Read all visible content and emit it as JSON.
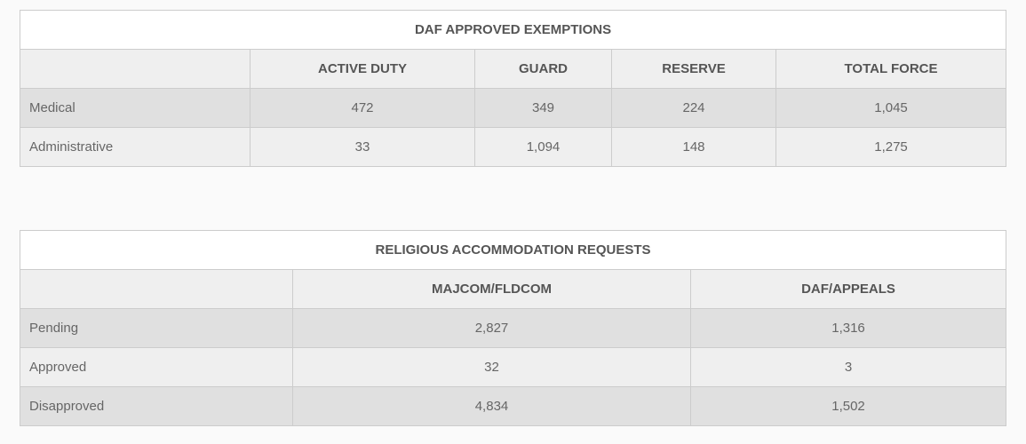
{
  "exemptions": {
    "title": "DAF APPROVED EXEMPTIONS",
    "columns": [
      "ACTIVE DUTY",
      "GUARD",
      "RESERVE",
      "TOTAL FORCE"
    ],
    "rows": [
      {
        "label": "Medical",
        "values": [
          "472",
          "349",
          "224",
          "1,045"
        ]
      },
      {
        "label": "Administrative",
        "values": [
          "33",
          "1,094",
          "148",
          "1,275"
        ]
      }
    ]
  },
  "religious": {
    "title": "RELIGIOUS ACCOMMODATION REQUESTS",
    "columns": [
      "MAJCOM/FLDCOM",
      "DAF/APPEALS"
    ],
    "rows": [
      {
        "label": "Pending",
        "values": [
          "2,827",
          "1,316"
        ]
      },
      {
        "label": "Approved",
        "values": [
          "32",
          "3"
        ]
      },
      {
        "label": "Disapproved",
        "values": [
          "4,834",
          "1,502"
        ]
      }
    ]
  }
}
